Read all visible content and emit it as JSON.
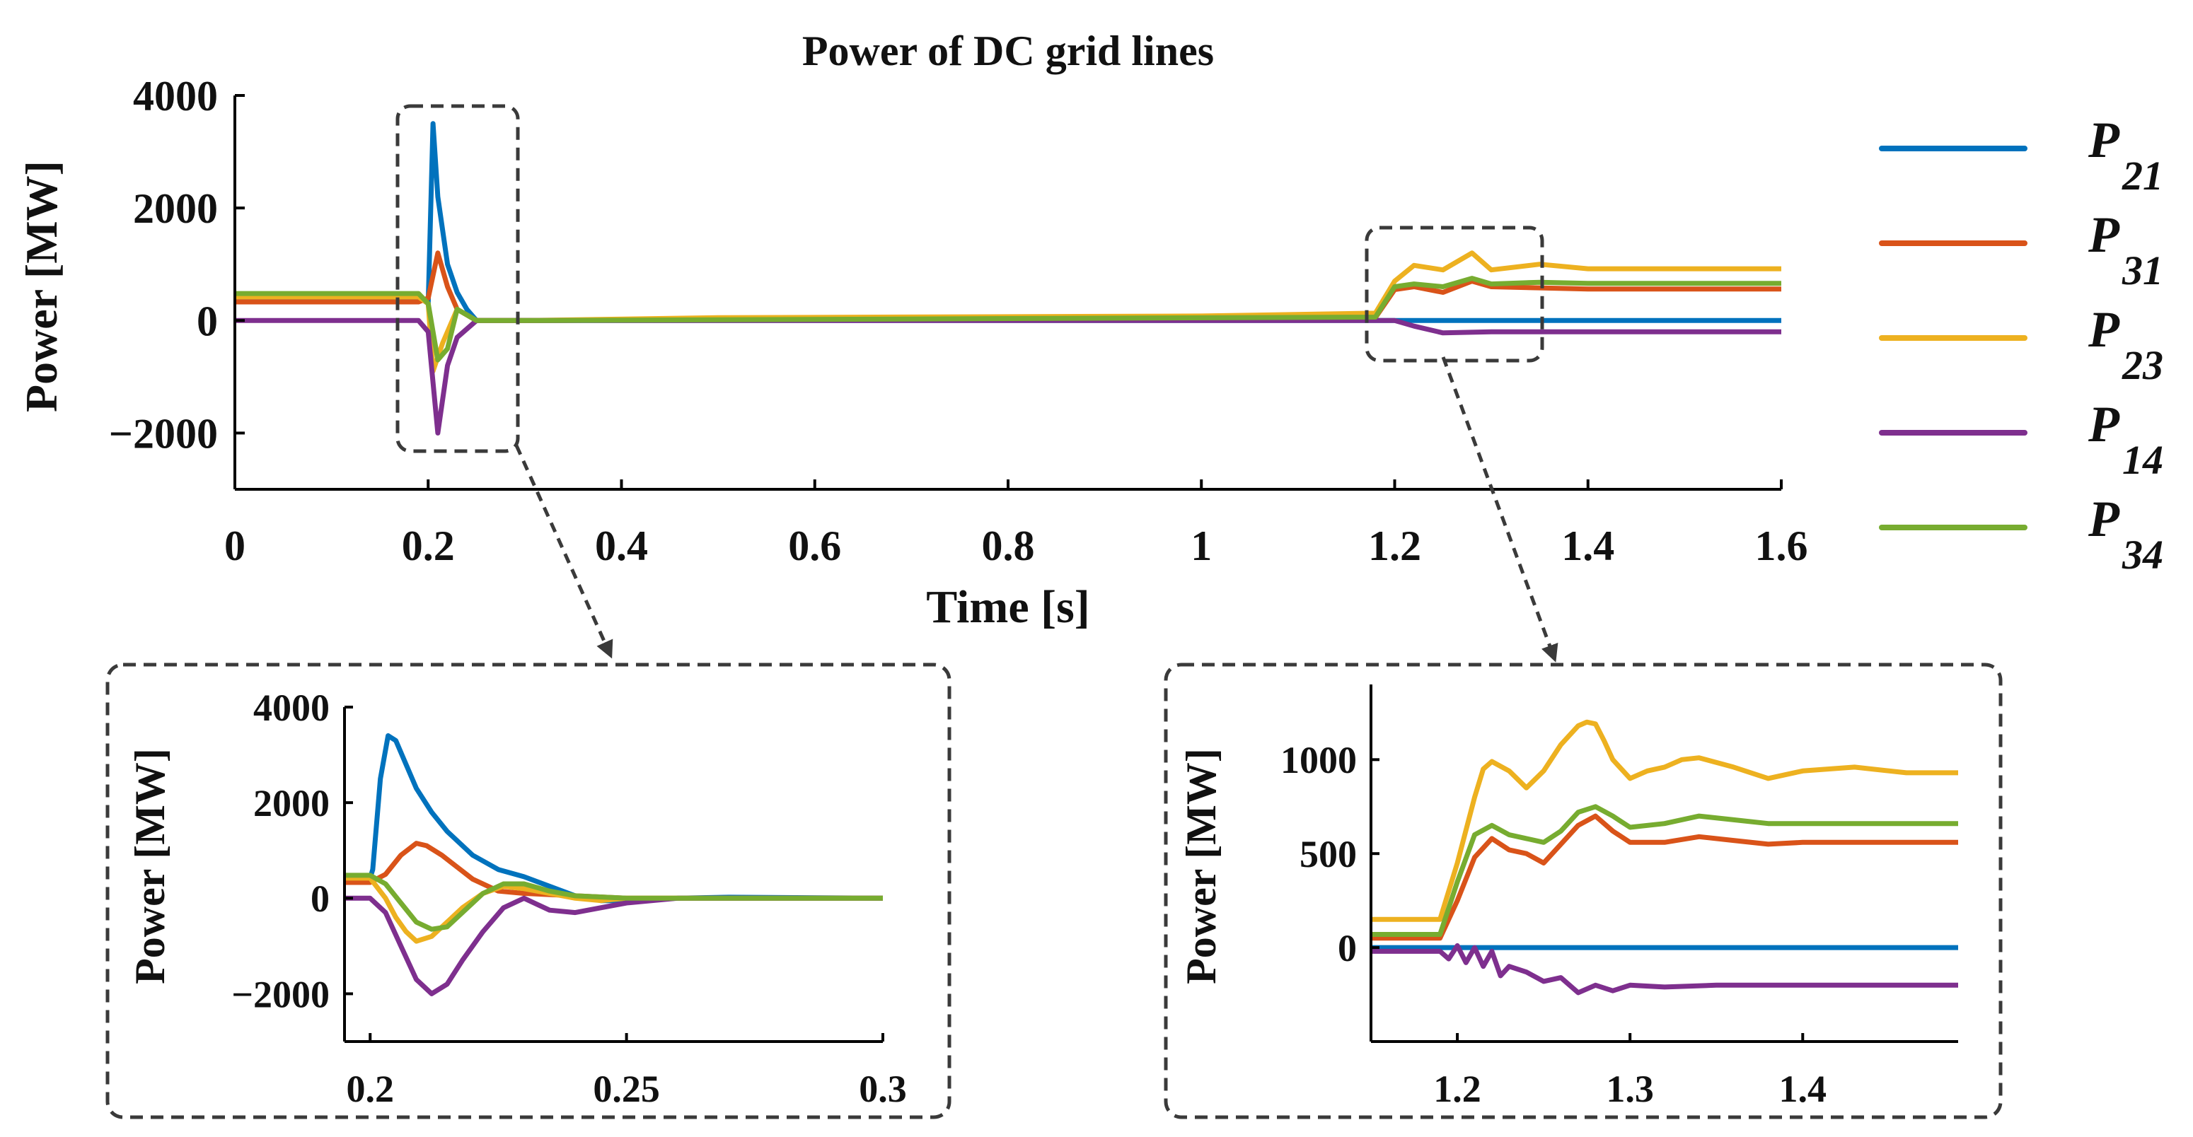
{
  "chart_data": [
    {
      "type": "line",
      "id": "main",
      "title": "Power of DC grid lines",
      "xlabel": "Time [s]",
      "ylabel": "Power [MW]",
      "xlim": [
        0,
        1.6
      ],
      "ylim": [
        -3000,
        4000
      ],
      "xticks": [
        0,
        0.2,
        0.4,
        0.6,
        0.8,
        1,
        1.2,
        1.4,
        1.6
      ],
      "xtick_labels": [
        "0",
        "0.2",
        "0.4",
        "0.6",
        "0.8",
        "1",
        "1.2",
        "1.4",
        "1.6"
      ],
      "yticks": [
        -2000,
        0,
        2000,
        4000
      ],
      "ytick_labels": [
        "−2000",
        "0",
        "2000",
        "4000"
      ],
      "series": [
        {
          "name": "P21",
          "color": "#0072BD",
          "x": [
            0,
            0.19,
            0.2,
            0.205,
            0.21,
            0.22,
            0.23,
            0.24,
            0.25,
            0.3,
            1.18,
            1.6
          ],
          "y": [
            420,
            420,
            300,
            3500,
            2200,
            1000,
            500,
            200,
            0,
            0,
            0,
            0
          ]
        },
        {
          "name": "P31",
          "color": "#D95319",
          "x": [
            0,
            0.19,
            0.2,
            0.21,
            0.22,
            0.23,
            0.25,
            0.3,
            1.18,
            1.2,
            1.22,
            1.25,
            1.28,
            1.3,
            1.35,
            1.4,
            1.6
          ],
          "y": [
            330,
            330,
            400,
            1200,
            600,
            200,
            0,
            0,
            50,
            550,
            600,
            500,
            700,
            600,
            580,
            560,
            560
          ]
        },
        {
          "name": "P23",
          "color": "#EDB120",
          "x": [
            0,
            0.19,
            0.2,
            0.205,
            0.215,
            0.23,
            0.25,
            0.3,
            0.5,
            1.0,
            1.18,
            1.2,
            1.22,
            1.25,
            1.28,
            1.3,
            1.35,
            1.4,
            1.6
          ],
          "y": [
            420,
            420,
            300,
            -900,
            -400,
            200,
            0,
            0,
            50,
            80,
            130,
            700,
            980,
            900,
            1200,
            900,
            1000,
            920,
            920
          ]
        },
        {
          "name": "P14",
          "color": "#7E2F8E",
          "x": [
            0,
            0.19,
            0.2,
            0.21,
            0.22,
            0.23,
            0.25,
            0.3,
            1.18,
            1.2,
            1.22,
            1.25,
            1.3,
            1.4,
            1.6
          ],
          "y": [
            0,
            0,
            -200,
            -2000,
            -800,
            -300,
            0,
            0,
            0,
            0,
            -100,
            -220,
            -200,
            -200,
            -200
          ]
        },
        {
          "name": "P34",
          "color": "#77AC30",
          "x": [
            0,
            0.19,
            0.2,
            0.21,
            0.22,
            0.23,
            0.25,
            0.3,
            1.18,
            1.2,
            1.22,
            1.25,
            1.28,
            1.3,
            1.35,
            1.4,
            1.6
          ],
          "y": [
            480,
            480,
            300,
            -700,
            -500,
            200,
            0,
            0,
            60,
            600,
            650,
            600,
            750,
            650,
            680,
            660,
            660
          ]
        }
      ]
    },
    {
      "type": "line",
      "id": "inset_left",
      "xlabel": "",
      "ylabel": "Power [MW]",
      "xlim": [
        0.195,
        0.3
      ],
      "ylim": [
        -3000,
        4000
      ],
      "xticks": [
        0.2,
        0.25,
        0.3
      ],
      "xtick_labels": [
        "0.2",
        "0.25",
        "0.3"
      ],
      "yticks": [
        -2000,
        0,
        2000,
        4000
      ],
      "ytick_labels": [
        "−2000",
        "0",
        "2000",
        "4000"
      ],
      "series": [
        {
          "name": "P21",
          "color": "#0072BD",
          "x": [
            0.195,
            0.2,
            0.2005,
            0.202,
            0.2035,
            0.205,
            0.207,
            0.209,
            0.212,
            0.215,
            0.22,
            0.225,
            0.23,
            0.235,
            0.24,
            0.245,
            0.25,
            0.26,
            0.27,
            0.3
          ],
          "y": [
            420,
            420,
            600,
            2500,
            3400,
            3300,
            2800,
            2300,
            1800,
            1400,
            900,
            600,
            450,
            250,
            50,
            -50,
            -50,
            0,
            20,
            0
          ]
        },
        {
          "name": "P31",
          "color": "#D95319",
          "x": [
            0.195,
            0.2,
            0.203,
            0.206,
            0.209,
            0.211,
            0.214,
            0.217,
            0.22,
            0.225,
            0.23,
            0.24,
            0.25,
            0.26,
            0.3
          ],
          "y": [
            330,
            330,
            500,
            900,
            1150,
            1100,
            900,
            650,
            400,
            150,
            100,
            50,
            0,
            0,
            0
          ]
        },
        {
          "name": "P23",
          "color": "#EDB120",
          "x": [
            0.195,
            0.2,
            0.203,
            0.205,
            0.207,
            0.209,
            0.212,
            0.215,
            0.218,
            0.222,
            0.226,
            0.23,
            0.235,
            0.24,
            0.245,
            0.25,
            0.26,
            0.3
          ],
          "y": [
            420,
            420,
            0,
            -400,
            -700,
            -900,
            -800,
            -500,
            -200,
            100,
            250,
            200,
            100,
            0,
            -50,
            0,
            0,
            0
          ]
        },
        {
          "name": "P14",
          "color": "#7E2F8E",
          "x": [
            0.195,
            0.2,
            0.203,
            0.206,
            0.209,
            0.212,
            0.215,
            0.218,
            0.222,
            0.226,
            0.23,
            0.235,
            0.24,
            0.25,
            0.26,
            0.3
          ],
          "y": [
            0,
            0,
            -300,
            -1000,
            -1700,
            -2000,
            -1800,
            -1300,
            -700,
            -200,
            0,
            -250,
            -300,
            -100,
            0,
            0
          ]
        },
        {
          "name": "P34",
          "color": "#77AC30",
          "x": [
            0.195,
            0.2,
            0.203,
            0.206,
            0.209,
            0.212,
            0.215,
            0.218,
            0.222,
            0.226,
            0.23,
            0.235,
            0.24,
            0.25,
            0.3
          ],
          "y": [
            480,
            480,
            300,
            -100,
            -500,
            -650,
            -600,
            -300,
            100,
            300,
            300,
            150,
            50,
            0,
            0
          ]
        }
      ]
    },
    {
      "type": "line",
      "id": "inset_right",
      "xlabel": "",
      "ylabel": "Power [MW]",
      "xlim": [
        1.15,
        1.49
      ],
      "ylim": [
        -500,
        1400
      ],
      "xticks": [
        1.2,
        1.3,
        1.4
      ],
      "xtick_labels": [
        "1.2",
        "1.3",
        "1.4"
      ],
      "yticks": [
        0,
        500,
        1000
      ],
      "ytick_labels": [
        "0",
        "500",
        "1000"
      ],
      "series": [
        {
          "name": "P21",
          "color": "#0072BD",
          "x": [
            1.15,
            1.49
          ],
          "y": [
            0,
            0
          ]
        },
        {
          "name": "P31",
          "color": "#D95319",
          "x": [
            1.15,
            1.19,
            1.2,
            1.21,
            1.22,
            1.23,
            1.24,
            1.25,
            1.26,
            1.27,
            1.28,
            1.29,
            1.3,
            1.32,
            1.34,
            1.36,
            1.38,
            1.4,
            1.43,
            1.46,
            1.49
          ],
          "y": [
            50,
            50,
            250,
            480,
            580,
            520,
            500,
            450,
            550,
            650,
            700,
            620,
            560,
            560,
            590,
            570,
            550,
            560,
            560,
            560,
            560
          ]
        },
        {
          "name": "P23",
          "color": "#EDB120",
          "x": [
            1.15,
            1.19,
            1.2,
            1.21,
            1.215,
            1.22,
            1.23,
            1.24,
            1.25,
            1.26,
            1.27,
            1.275,
            1.28,
            1.285,
            1.29,
            1.3,
            1.31,
            1.32,
            1.33,
            1.34,
            1.36,
            1.38,
            1.4,
            1.43,
            1.46,
            1.49
          ],
          "y": [
            150,
            150,
            450,
            800,
            950,
            990,
            940,
            850,
            940,
            1080,
            1180,
            1200,
            1190,
            1100,
            1000,
            900,
            940,
            960,
            1000,
            1010,
            960,
            900,
            940,
            960,
            930,
            930
          ]
        },
        {
          "name": "P14",
          "color": "#7E2F8E",
          "x": [
            1.15,
            1.19,
            1.195,
            1.2,
            1.205,
            1.21,
            1.215,
            1.22,
            1.225,
            1.23,
            1.24,
            1.25,
            1.26,
            1.27,
            1.28,
            1.29,
            1.3,
            1.32,
            1.35,
            1.4,
            1.45,
            1.49
          ],
          "y": [
            -20,
            -20,
            -60,
            10,
            -80,
            0,
            -100,
            -20,
            -150,
            -100,
            -130,
            -180,
            -160,
            -240,
            -200,
            -230,
            -200,
            -210,
            -200,
            -200,
            -200,
            -200
          ]
        },
        {
          "name": "P34",
          "color": "#77AC30",
          "x": [
            1.15,
            1.19,
            1.2,
            1.21,
            1.22,
            1.23,
            1.24,
            1.25,
            1.26,
            1.27,
            1.28,
            1.29,
            1.3,
            1.32,
            1.34,
            1.36,
            1.38,
            1.4,
            1.43,
            1.46,
            1.49
          ],
          "y": [
            70,
            70,
            350,
            600,
            650,
            600,
            580,
            560,
            620,
            720,
            750,
            700,
            640,
            660,
            700,
            680,
            660,
            660,
            660,
            660,
            660
          ]
        }
      ]
    }
  ],
  "legend": {
    "placement": "right",
    "items": [
      {
        "label": "P",
        "sub": "21",
        "color": "#0072BD"
      },
      {
        "label": "P",
        "sub": "31",
        "color": "#D95319"
      },
      {
        "label": "P",
        "sub": "23",
        "color": "#EDB120"
      },
      {
        "label": "P",
        "sub": "14",
        "color": "#7E2F8E"
      },
      {
        "label": "P",
        "sub": "34",
        "color": "#77AC30"
      }
    ]
  }
}
